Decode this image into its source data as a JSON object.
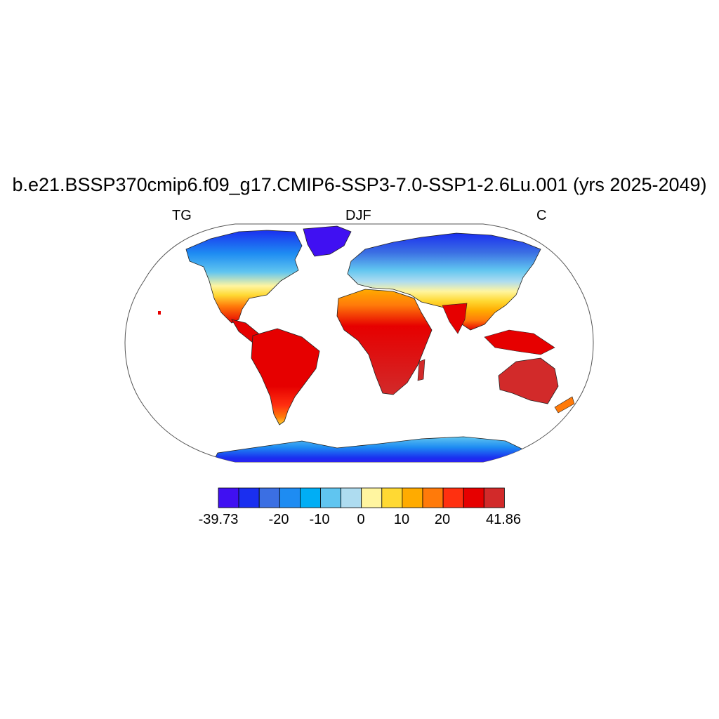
{
  "title": "b.e21.BSSP370cmip6.f09_g17.CMIP6-SSP3-7.0-SSP1-2.6Lu.001 (yrs 2025-2049)",
  "subtitle_left": "TG",
  "subtitle_center": "DJF",
  "subtitle_right": "C",
  "projection": "Robinson",
  "colorbar": {
    "colors": [
      "#4010f2",
      "#1a2ff0",
      "#3b6fe3",
      "#1e8cf2",
      "#00aef5",
      "#60c5f0",
      "#aedcf0",
      "#fff5a0",
      "#ffd933",
      "#ffab00",
      "#ff7a0a",
      "#ff3010",
      "#e60000",
      "#d22a2a"
    ],
    "labels": [
      "-39.73",
      "-20",
      "-10",
      "0",
      "10",
      "20",
      "41.86"
    ]
  }
}
